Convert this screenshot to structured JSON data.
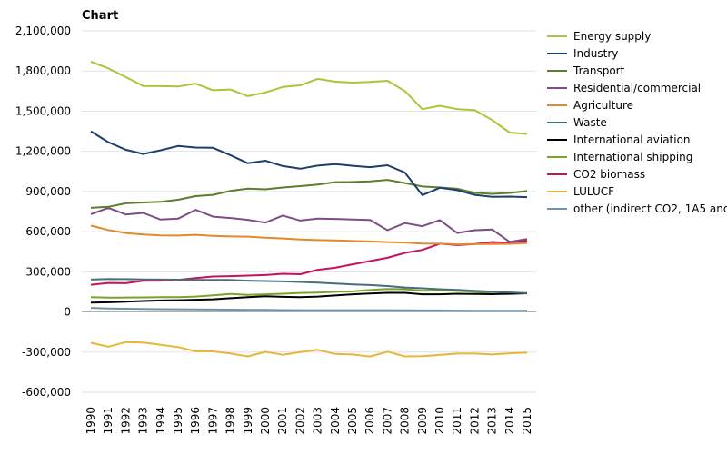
{
  "chart_data": {
    "type": "line",
    "title": "Chart",
    "xlabel": "",
    "ylabel": "",
    "ylim": [
      -600000,
      2100000
    ],
    "yticks": [
      2100000,
      1800000,
      1500000,
      1200000,
      900000,
      600000,
      300000,
      0,
      -300000,
      -600000
    ],
    "ytick_labels": [
      "2,100,000",
      "1,800,000",
      "1,500,000",
      "1,200,000",
      "900,000",
      "600,000",
      "300,000",
      "0",
      "-300,000",
      "-600,000"
    ],
    "x": [
      "1990",
      "1991",
      "1992",
      "1993",
      "1994",
      "1995",
      "1996",
      "1997",
      "1998",
      "1999",
      "2000",
      "2001",
      "2002",
      "2003",
      "2004",
      "2005",
      "2006",
      "2007",
      "2008",
      "2009",
      "2010",
      "2011",
      "2012",
      "2013",
      "2014",
      "2015"
    ],
    "grid": "horizontal",
    "legend_position": "right",
    "series": [
      {
        "name": "Energy supply",
        "color": "#a8c63a",
        "values": [
          1870000,
          1820000,
          1755000,
          1688000,
          1687000,
          1684000,
          1706000,
          1656000,
          1662000,
          1612000,
          1640000,
          1681000,
          1693000,
          1741000,
          1720000,
          1713000,
          1718000,
          1727000,
          1650000,
          1515000,
          1540000,
          1515000,
          1508000,
          1433000,
          1340000,
          1330000
        ]
      },
      {
        "name": "Industry",
        "color": "#1f3e6b",
        "values": [
          1350000,
          1268000,
          1212000,
          1180000,
          1208000,
          1240000,
          1228000,
          1226000,
          1171000,
          1111000,
          1130000,
          1090000,
          1070000,
          1093000,
          1105000,
          1092000,
          1082000,
          1096000,
          1041000,
          873000,
          928000,
          910000,
          875000,
          860000,
          862000,
          858000
        ]
      },
      {
        "name": "Transport",
        "color": "#5b7f2a",
        "values": [
          778000,
          785000,
          812000,
          818000,
          823000,
          838000,
          865000,
          875000,
          905000,
          921000,
          916000,
          930000,
          940000,
          952000,
          970000,
          971000,
          976000,
          987000,
          963000,
          937000,
          930000,
          920000,
          890000,
          882000,
          889000,
          903000
        ]
      },
      {
        "name": "Residential/commercial",
        "color": "#7f4d86",
        "values": [
          730000,
          778000,
          728000,
          740000,
          690000,
          697000,
          763000,
          712000,
          702000,
          688000,
          667000,
          720000,
          683000,
          697000,
          695000,
          691000,
          687000,
          611000,
          664000,
          641000,
          686000,
          590000,
          611000,
          616000,
          524000,
          545000
        ]
      },
      {
        "name": "Agriculture",
        "color": "#e08a2e",
        "values": [
          645000,
          612000,
          590000,
          579000,
          572000,
          571000,
          576000,
          569000,
          564000,
          563000,
          555000,
          549000,
          542000,
          537000,
          535000,
          530000,
          527000,
          522000,
          519000,
          511000,
          510000,
          505000,
          508000,
          507000,
          509000,
          515000
        ]
      },
      {
        "name": "Waste",
        "color": "#4a6d7c",
        "values": [
          242000,
          246000,
          245000,
          243000,
          242000,
          241000,
          240000,
          240000,
          239000,
          234000,
          231000,
          228000,
          224000,
          219000,
          212000,
          206000,
          201000,
          194000,
          183000,
          177000,
          170000,
          165000,
          158000,
          152000,
          146000,
          140000
        ]
      },
      {
        "name": "International aviation",
        "color": "#000000",
        "values": [
          70000,
          72000,
          77000,
          82000,
          86000,
          88000,
          91000,
          95000,
          103000,
          110000,
          118000,
          113000,
          110000,
          115000,
          123000,
          132000,
          138000,
          143000,
          143000,
          132000,
          132000,
          136000,
          134000,
          133000,
          136000,
          140000
        ]
      },
      {
        "name": "International shipping",
        "color": "#7aa22e",
        "values": [
          110000,
          107000,
          108000,
          109000,
          110000,
          110000,
          115000,
          124000,
          135000,
          127000,
          132000,
          136000,
          142000,
          145000,
          150000,
          154000,
          164000,
          171000,
          170000,
          158000,
          161000,
          158000,
          150000,
          138000,
          135000,
          139000
        ]
      },
      {
        "name": "CO2 biomass",
        "color": "#c4135e",
        "values": [
          203000,
          217000,
          215000,
          233000,
          234000,
          240000,
          253000,
          265000,
          268000,
          272000,
          276000,
          285000,
          282000,
          315000,
          330000,
          356000,
          380000,
          405000,
          441000,
          464000,
          510000,
          500000,
          507000,
          523000,
          516000,
          535000
        ]
      },
      {
        "name": "LULUCF",
        "color": "#e8b63a",
        "values": [
          -230000,
          -260000,
          -225000,
          -228000,
          -245000,
          -262000,
          -294000,
          -295000,
          -310000,
          -332000,
          -298000,
          -320000,
          -300000,
          -283000,
          -314000,
          -318000,
          -333000,
          -297000,
          -332000,
          -330000,
          -321000,
          -311000,
          -311000,
          -318000,
          -309000,
          -304000
        ]
      },
      {
        "name": "other (indirect CO2, 1A5 and",
        "color": "#6f93a8",
        "values": [
          30000,
          26000,
          24000,
          22000,
          21000,
          20000,
          19000,
          18000,
          17000,
          16000,
          15000,
          14000,
          13000,
          13000,
          13000,
          13000,
          13000,
          13000,
          12000,
          11000,
          11000,
          10000,
          9000,
          9000,
          9000,
          9000
        ]
      }
    ]
  }
}
